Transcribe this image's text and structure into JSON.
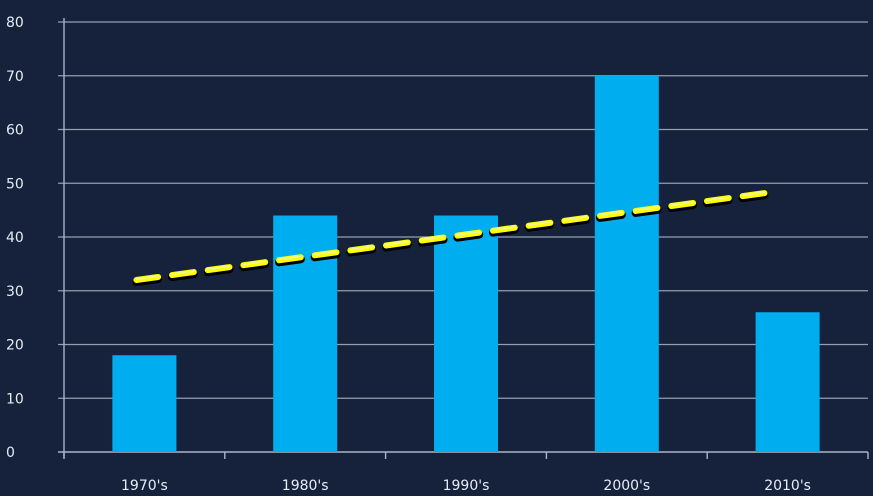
{
  "chart_data": {
    "type": "bar",
    "title": "",
    "xlabel": "",
    "ylabel": "",
    "categories": [
      "1970's",
      "1980's",
      "1990's",
      "2000's",
      "2010's"
    ],
    "series": [
      {
        "values": [
          18,
          44,
          44,
          70,
          26
        ]
      }
    ],
    "trendline": {
      "style": "dashed",
      "from": {
        "category": "1970's",
        "value": 32
      },
      "to": {
        "category": "2010's",
        "value": 48.5
      }
    },
    "ylim": [
      0,
      80
    ],
    "yticks": [
      0,
      10,
      20,
      30,
      40,
      50,
      60,
      70,
      80
    ],
    "grid": true,
    "legend": "none",
    "colors": {
      "background": "#16223c",
      "bar": "#00aeef",
      "grid": "#aab4c4",
      "text": "#e6ecf5",
      "trend_dash_a": "#ffff00",
      "trend_dash_b": "#e8f5c8",
      "trend_shadow": "#000000"
    }
  }
}
